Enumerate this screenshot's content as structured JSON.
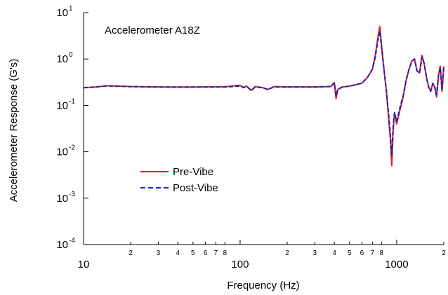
{
  "chart_data": {
    "type": "line",
    "title": "Accelerometer A18Z",
    "xlabel": "Frequency (Hz)",
    "ylabel": "Accelerometer Response (G's)",
    "x_scale": "log",
    "y_scale": "log",
    "xlim": [
      10,
      2000
    ],
    "ylim": [
      0.0001,
      10
    ],
    "grid": false,
    "legend_position": "center-left",
    "x_major_ticks": [
      {
        "value": 10,
        "label": "10"
      },
      {
        "value": 100,
        "label": "100"
      },
      {
        "value": 1000,
        "label": "1000"
      }
    ],
    "x_minor_ticks": [
      {
        "value": 20,
        "label": "2"
      },
      {
        "value": 30,
        "label": "3"
      },
      {
        "value": 40,
        "label": "4"
      },
      {
        "value": 50,
        "label": "5"
      },
      {
        "value": 60,
        "label": "6"
      },
      {
        "value": 70,
        "label": "7"
      },
      {
        "value": 80,
        "label": "8"
      },
      {
        "value": 200,
        "label": "2"
      },
      {
        "value": 300,
        "label": "3"
      },
      {
        "value": 400,
        "label": "4"
      },
      {
        "value": 500,
        "label": "5"
      },
      {
        "value": 600,
        "label": "6"
      },
      {
        "value": 700,
        "label": "7"
      },
      {
        "value": 800,
        "label": "8"
      },
      {
        "value": 2000,
        "label": "2"
      }
    ],
    "y_ticks": [
      {
        "value": 10,
        "base": "10",
        "exp": "1"
      },
      {
        "value": 1,
        "base": "10",
        "exp": "0"
      },
      {
        "value": 0.1,
        "base": "10",
        "exp": "-1"
      },
      {
        "value": 0.01,
        "base": "10",
        "exp": "-2"
      },
      {
        "value": 0.001,
        "base": "10",
        "exp": "-3"
      },
      {
        "value": 0.0001,
        "base": "10",
        "exp": "-4"
      }
    ],
    "series": [
      {
        "name": "Pre-Vibe",
        "color": "#e8191f",
        "dash": "solid",
        "points": [
          [
            10,
            0.24
          ],
          [
            11,
            0.245
          ],
          [
            12,
            0.25
          ],
          [
            14,
            0.265
          ],
          [
            16,
            0.262
          ],
          [
            20,
            0.255
          ],
          [
            30,
            0.25
          ],
          [
            40,
            0.248
          ],
          [
            60,
            0.25
          ],
          [
            80,
            0.252
          ],
          [
            100,
            0.27
          ],
          [
            105,
            0.24
          ],
          [
            110,
            0.26
          ],
          [
            118,
            0.21
          ],
          [
            125,
            0.255
          ],
          [
            140,
            0.24
          ],
          [
            150,
            0.22
          ],
          [
            165,
            0.255
          ],
          [
            200,
            0.25
          ],
          [
            300,
            0.25
          ],
          [
            380,
            0.255
          ],
          [
            400,
            0.3
          ],
          [
            410,
            0.14
          ],
          [
            420,
            0.22
          ],
          [
            450,
            0.25
          ],
          [
            500,
            0.26
          ],
          [
            550,
            0.28
          ],
          [
            600,
            0.3
          ],
          [
            650,
            0.4
          ],
          [
            700,
            0.6
          ],
          [
            730,
            1.2
          ],
          [
            760,
            3.0
          ],
          [
            780,
            5.0
          ],
          [
            800,
            2.0
          ],
          [
            830,
            0.6
          ],
          [
            860,
            0.2
          ],
          [
            890,
            0.05
          ],
          [
            910,
            0.02
          ],
          [
            930,
            0.005
          ],
          [
            950,
            0.03
          ],
          [
            970,
            0.07
          ],
          [
            1000,
            0.04
          ],
          [
            1050,
            0.08
          ],
          [
            1100,
            0.15
          ],
          [
            1150,
            0.35
          ],
          [
            1200,
            0.6
          ],
          [
            1250,
            0.9
          ],
          [
            1300,
            1.0
          ],
          [
            1350,
            0.55
          ],
          [
            1400,
            0.5
          ],
          [
            1450,
            1.2
          ],
          [
            1500,
            0.8
          ],
          [
            1550,
            0.4
          ],
          [
            1600,
            0.25
          ],
          [
            1650,
            0.2
          ],
          [
            1700,
            0.3
          ],
          [
            1750,
            0.25
          ],
          [
            1800,
            0.15
          ],
          [
            1850,
            0.45
          ],
          [
            1900,
            0.7
          ],
          [
            1950,
            0.2
          ],
          [
            2000,
            0.7
          ]
        ]
      },
      {
        "name": "Post-Vibe",
        "color": "#1a22b4",
        "dash": "dashed",
        "points": [
          [
            10,
            0.24
          ],
          [
            11,
            0.245
          ],
          [
            12,
            0.25
          ],
          [
            14,
            0.262
          ],
          [
            16,
            0.26
          ],
          [
            20,
            0.253
          ],
          [
            30,
            0.25
          ],
          [
            40,
            0.247
          ],
          [
            60,
            0.25
          ],
          [
            80,
            0.25
          ],
          [
            100,
            0.26
          ],
          [
            105,
            0.245
          ],
          [
            110,
            0.255
          ],
          [
            118,
            0.21
          ],
          [
            125,
            0.25
          ],
          [
            140,
            0.24
          ],
          [
            150,
            0.22
          ],
          [
            165,
            0.25
          ],
          [
            200,
            0.25
          ],
          [
            300,
            0.25
          ],
          [
            380,
            0.255
          ],
          [
            400,
            0.31
          ],
          [
            410,
            0.16
          ],
          [
            420,
            0.22
          ],
          [
            450,
            0.25
          ],
          [
            500,
            0.26
          ],
          [
            550,
            0.28
          ],
          [
            600,
            0.3
          ],
          [
            650,
            0.4
          ],
          [
            700,
            0.6
          ],
          [
            730,
            1.1
          ],
          [
            760,
            2.6
          ],
          [
            780,
            4.0
          ],
          [
            800,
            1.8
          ],
          [
            830,
            0.6
          ],
          [
            860,
            0.2
          ],
          [
            890,
            0.06
          ],
          [
            910,
            0.025
          ],
          [
            930,
            0.008
          ],
          [
            950,
            0.035
          ],
          [
            970,
            0.07
          ],
          [
            1000,
            0.045
          ],
          [
            1050,
            0.09
          ],
          [
            1100,
            0.16
          ],
          [
            1150,
            0.35
          ],
          [
            1200,
            0.6
          ],
          [
            1250,
            0.9
          ],
          [
            1300,
            1.0
          ],
          [
            1350,
            0.55
          ],
          [
            1400,
            0.5
          ],
          [
            1450,
            1.1
          ],
          [
            1500,
            0.8
          ],
          [
            1550,
            0.4
          ],
          [
            1600,
            0.25
          ],
          [
            1650,
            0.2
          ],
          [
            1700,
            0.3
          ],
          [
            1750,
            0.25
          ],
          [
            1800,
            0.17
          ],
          [
            1850,
            0.45
          ],
          [
            1900,
            0.65
          ],
          [
            1950,
            0.22
          ],
          [
            2000,
            0.65
          ]
        ]
      }
    ]
  }
}
